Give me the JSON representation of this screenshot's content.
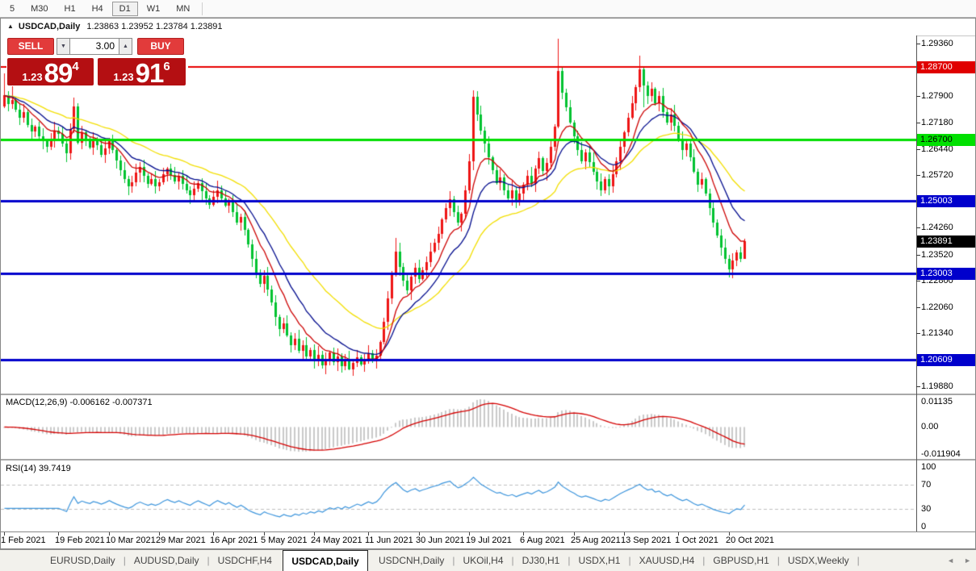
{
  "toolbar": {
    "items": [
      "5",
      "M30",
      "H1",
      "H4",
      "D1",
      "W1",
      "MN"
    ],
    "active": "D1"
  },
  "header": {
    "collapse_icon": "▲",
    "symbol": "USDCAD,Daily",
    "ohlc": "1.23863 1.23952 1.23784 1.23891"
  },
  "trade_panel": {
    "sell_label": "SELL",
    "buy_label": "BUY",
    "volume": "3.00",
    "spin_down_icon": "▼",
    "spin_up_icon": "▲",
    "sell_price": {
      "prefix": "1.23",
      "big": "89",
      "sup": "4"
    },
    "buy_price": {
      "prefix": "1.23",
      "big": "91",
      "sup": "6"
    }
  },
  "price_axis": {
    "ticks": [
      "1.29360",
      "1.27900",
      "1.27180",
      "1.26440",
      "1.25720",
      "1.24260",
      "1.23520",
      "1.22800",
      "1.22060",
      "1.21340",
      "1.19880"
    ],
    "badges": [
      {
        "text": "1.28700",
        "bg": "#e00000",
        "fg": "#ffffff"
      },
      {
        "text": "1.26700",
        "bg": "#00e000",
        "fg": "#000000"
      },
      {
        "text": "1.25003",
        "bg": "#0000cc",
        "fg": "#ffffff"
      },
      {
        "text": "1.23891",
        "bg": "#000000",
        "fg": "#ffffff"
      },
      {
        "text": "1.23003",
        "bg": "#0000cc",
        "fg": "#ffffff"
      },
      {
        "text": "1.20609",
        "bg": "#0000cc",
        "fg": "#ffffff"
      }
    ]
  },
  "indicators": {
    "macd": {
      "label": "MACD(12,26,9)",
      "values": "-0.006162 -0.007371",
      "scale": [
        {
          "text": "0.01135",
          "value": 0.01135
        },
        {
          "text": "0.00",
          "value": 0
        },
        {
          "text": "-0.011904",
          "value": -0.011904
        }
      ]
    },
    "rsi": {
      "label": "RSI(14)",
      "value": "39.7419",
      "scale": [
        {
          "text": "100",
          "value": 100
        },
        {
          "text": "70",
          "value": 70
        },
        {
          "text": "30",
          "value": 30
        },
        {
          "text": "0",
          "value": 0
        }
      ]
    }
  },
  "date_axis": {
    "labels": [
      {
        "text": "1 Feb 2021",
        "index": 0
      },
      {
        "text": "19 Feb 2021",
        "index": 14
      },
      {
        "text": "10 Mar 2021",
        "index": 27
      },
      {
        "text": "29 Mar 2021",
        "index": 40
      },
      {
        "text": "16 Apr 2021",
        "index": 54
      },
      {
        "text": "5 May 2021",
        "index": 67
      },
      {
        "text": "24 May 2021",
        "index": 80
      },
      {
        "text": "11 Jun 2021",
        "index": 94
      },
      {
        "text": "30 Jun 2021",
        "index": 107
      },
      {
        "text": "19 Jul 2021",
        "index": 120
      },
      {
        "text": "6 Aug 2021",
        "index": 134
      },
      {
        "text": "25 Aug 2021",
        "index": 147
      },
      {
        "text": "13 Sep 2021",
        "index": 160
      },
      {
        "text": "1 Oct 2021",
        "index": 174
      },
      {
        "text": "20 Oct 2021",
        "index": 187
      }
    ]
  },
  "tabs": {
    "items": [
      "EURUSD,Daily",
      "AUDUSD,Daily",
      "USDCHF,H4",
      "USDCAD,Daily",
      "USDCNH,Daily",
      "UKOil,H4",
      "DJ30,H1",
      "USDX,H1",
      "XAUUSD,H4",
      "GBPUSD,H1",
      "USDX,Weekly"
    ],
    "active_index": 3,
    "separator": "|",
    "scroll_left_icon": "◄",
    "scroll_right_icon": "►"
  },
  "chart_data": {
    "type": "candlestick",
    "symbol": "USDCAD",
    "timeframe": "Daily",
    "current_bar": {
      "open": 1.23863,
      "high": 1.23952,
      "low": 1.23784,
      "close": 1.23891
    },
    "price_view": {
      "top": 1.2958,
      "bottom": 1.1967
    },
    "style": {
      "up_color": "#ee1515",
      "down_color": "#00c230",
      "histogram_color": "#c9c9c9",
      "macd_signal_color": "#d40000",
      "rsi_color": "#3d95dc",
      "rsi_level_color": "#bfbfbf"
    },
    "levels": [
      {
        "price": 1.287,
        "color": "#e80000",
        "width": 2
      },
      {
        "price": 1.267,
        "color": "#00dd00",
        "width": 3
      },
      {
        "price": 1.25003,
        "color": "#0000cc",
        "width": 3
      },
      {
        "price": 1.23003,
        "color": "#0000cc",
        "width": 3
      },
      {
        "price": 1.20609,
        "color": "#0000cc",
        "width": 3
      }
    ],
    "moving_averages": [
      {
        "period": 34,
        "color": "#f2de00"
      },
      {
        "period": 16,
        "color": "#000a8c"
      },
      {
        "period": 9,
        "color": "#cc0000"
      }
    ],
    "macd_params": {
      "fast": 12,
      "slow": 26,
      "signal": 9,
      "current": -0.006162,
      "current_signal": -0.007371,
      "ylim": [
        -0.011904,
        0.01135
      ]
    },
    "rsi_params": {
      "period": 14,
      "current": 39.7419,
      "levels": [
        30,
        70
      ],
      "ylim": [
        0,
        100
      ]
    },
    "candles": {
      "first_open": 1.2762,
      "closes": [
        1.2792,
        1.2768,
        1.278,
        1.2752,
        1.273,
        1.2745,
        1.271,
        1.2692,
        1.2705,
        1.268,
        1.2665,
        1.265,
        1.2672,
        1.2695,
        1.2685,
        1.266,
        1.2632,
        1.27,
        1.2762,
        1.2662,
        1.269,
        1.2665,
        1.2648,
        1.267,
        1.2655,
        1.2628,
        1.2645,
        1.2665,
        1.264,
        1.2612,
        1.2585,
        1.256,
        1.254,
        1.2552,
        1.2578,
        1.2595,
        1.257,
        1.2548,
        1.256,
        1.254,
        1.2552,
        1.2575,
        1.259,
        1.2572,
        1.2555,
        1.257,
        1.2548,
        1.253,
        1.2515,
        1.2535,
        1.255,
        1.2528,
        1.2508,
        1.249,
        1.2512,
        1.253,
        1.2508,
        1.2488,
        1.25,
        1.247,
        1.244,
        1.2455,
        1.242,
        1.238,
        1.234,
        1.2302,
        1.227,
        1.2292,
        1.2255,
        1.222,
        1.218,
        1.2145,
        1.2162,
        1.2128,
        1.21,
        1.2118,
        1.2085,
        1.2102,
        1.207,
        1.2088,
        1.2058,
        1.2075,
        1.2045,
        1.2062,
        1.208,
        1.2055,
        1.207,
        1.2042,
        1.206,
        1.2035,
        1.2052,
        1.2068,
        1.2048,
        1.2062,
        1.2078,
        1.2058,
        1.2072,
        1.211,
        1.2165,
        1.223,
        1.23,
        1.236,
        1.2318,
        1.228,
        1.2252,
        1.229,
        1.2315,
        1.2285,
        1.2308,
        1.233,
        1.236,
        1.2385,
        1.241,
        1.2448,
        1.248,
        1.2505,
        1.247,
        1.244,
        1.2465,
        1.253,
        1.261,
        1.2788,
        1.274,
        1.2695,
        1.266,
        1.262,
        1.2585,
        1.255,
        1.2565,
        1.253,
        1.2508,
        1.253,
        1.2495,
        1.252,
        1.2545,
        1.257,
        1.2548,
        1.259,
        1.2618,
        1.2582,
        1.2605,
        1.265,
        1.2705,
        1.286,
        1.28,
        1.276,
        1.2718,
        1.268,
        1.264,
        1.261,
        1.2635,
        1.2608,
        1.258,
        1.2555,
        1.253,
        1.256,
        1.254,
        1.2575,
        1.261,
        1.265,
        1.269,
        1.273,
        1.277,
        1.2815,
        1.2865,
        1.282,
        1.279,
        1.281,
        1.277,
        1.279,
        1.2745,
        1.2718,
        1.274,
        1.2708,
        1.2672,
        1.264,
        1.2658,
        1.262,
        1.258,
        1.2545,
        1.256,
        1.252,
        1.248,
        1.244,
        1.2405,
        1.237,
        1.234,
        1.231,
        1.2335,
        1.2358,
        1.234,
        1.23891
      ],
      "wick_overrides": {
        "0": {
          "h": 1.2852
        },
        "2": {
          "h": 1.2834
        },
        "101": {
          "h": 1.2398
        },
        "121": {
          "h": 1.2806
        },
        "143": {
          "h": 1.295
        },
        "144": {
          "h": 1.2868
        },
        "164": {
          "h": 1.2902
        },
        "165": {
          "h": 1.287,
          "l": 1.276
        },
        "187": {
          "l": 1.2288
        },
        "191": {
          "h": 1.2396,
          "l": 1.235
        }
      }
    }
  }
}
